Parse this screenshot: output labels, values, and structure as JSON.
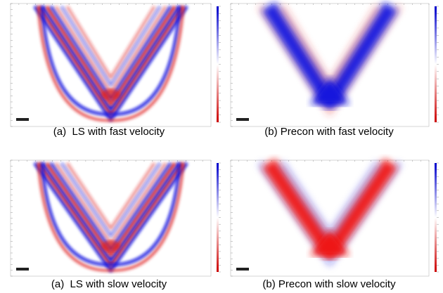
{
  "panels": [
    {
      "caption": "(a)  LS with fast velocity"
    },
    {
      "caption": "(b) Precon with fast velocity"
    },
    {
      "caption": "(a)  LS with slow velocity"
    },
    {
      "caption": "(b) Precon with slow velocity"
    }
  ]
}
